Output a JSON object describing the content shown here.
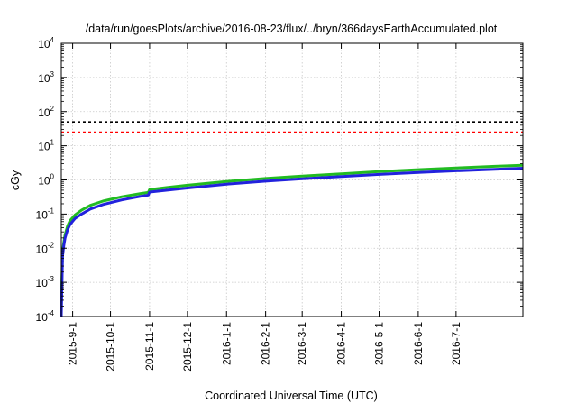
{
  "chart_data": {
    "type": "line",
    "title": "/data/run/goesPlots/archive/2016-08-23/flux/../bryn/366daysEarthAccumulated.plot",
    "xlabel": "Coordinated Universal Time (UTC)",
    "ylabel": "cGy",
    "y_scale": "log",
    "ylim": [
      0.0001,
      10000
    ],
    "xlim": [
      "2015-08-23",
      "2016-08-23"
    ],
    "y_ticks": [
      {
        "base": "10",
        "exp": "-4",
        "value": 0.0001
      },
      {
        "base": "10",
        "exp": "-3",
        "value": 0.001
      },
      {
        "base": "10",
        "exp": "-2",
        "value": 0.01
      },
      {
        "base": "10",
        "exp": "-1",
        "value": 0.1
      },
      {
        "base": "10",
        "exp": "0",
        "value": 1
      },
      {
        "base": "10",
        "exp": "1",
        "value": 10
      },
      {
        "base": "10",
        "exp": "2",
        "value": 100
      },
      {
        "base": "10",
        "exp": "3",
        "value": 1000
      },
      {
        "base": "10",
        "exp": "4",
        "value": 10000
      }
    ],
    "x_ticks": [
      {
        "label": "2015-9-1",
        "date": "2015-09-01"
      },
      {
        "label": "2015-10-1",
        "date": "2015-10-01"
      },
      {
        "label": "2015-11-1",
        "date": "2015-11-01"
      },
      {
        "label": "2015-12-1",
        "date": "2015-12-01"
      },
      {
        "label": "2016-1-1",
        "date": "2016-01-01"
      },
      {
        "label": "2016-2-1",
        "date": "2016-02-01"
      },
      {
        "label": "2016-3-1",
        "date": "2016-03-01"
      },
      {
        "label": "2016-4-1",
        "date": "2016-04-01"
      },
      {
        "label": "2016-5-1",
        "date": "2016-05-01"
      },
      {
        "label": "2016-6-1",
        "date": "2016-06-01"
      },
      {
        "label": "2016-7-1",
        "date": "2016-07-01"
      }
    ],
    "grid": true,
    "reference_lines": [
      {
        "value": 50,
        "color": "#000000",
        "style": "dashed"
      },
      {
        "value": 25,
        "color": "#ff0000",
        "style": "dashed"
      }
    ],
    "series": [
      {
        "color": "#22bb22",
        "x": [
          "2015-08-23",
          "2015-08-24",
          "2015-08-25",
          "2015-08-26",
          "2015-08-28",
          "2015-08-30",
          "2015-09-03",
          "2015-09-08",
          "2015-09-15",
          "2015-09-25",
          "2015-10-10",
          "2015-10-25",
          "2015-10-31",
          "2015-11-01",
          "2015-11-15",
          "2015-12-01",
          "2016-01-01",
          "2016-02-01",
          "2016-03-01",
          "2016-04-01",
          "2016-05-01",
          "2016-06-01",
          "2016-07-01",
          "2016-08-01",
          "2016-08-23"
        ],
        "y": [
          0.0002,
          0.008,
          0.015,
          0.025,
          0.045,
          0.065,
          0.095,
          0.13,
          0.18,
          0.24,
          0.32,
          0.4,
          0.43,
          0.52,
          0.6,
          0.7,
          0.9,
          1.1,
          1.3,
          1.5,
          1.75,
          2.0,
          2.25,
          2.5,
          2.7
        ]
      },
      {
        "color": "#2222dd",
        "x": [
          "2015-08-23",
          "2015-08-24",
          "2015-08-25",
          "2015-08-26",
          "2015-08-28",
          "2015-08-30",
          "2015-09-03",
          "2015-09-08",
          "2015-09-15",
          "2015-09-25",
          "2015-10-10",
          "2015-10-25",
          "2015-10-31",
          "2015-11-01",
          "2015-11-15",
          "2015-12-01",
          "2016-01-01",
          "2016-02-01",
          "2016-03-01",
          "2016-04-01",
          "2016-05-01",
          "2016-06-01",
          "2016-07-01",
          "2016-08-01",
          "2016-08-23"
        ],
        "y": [
          0.0001,
          0.006,
          0.012,
          0.02,
          0.035,
          0.05,
          0.075,
          0.1,
          0.14,
          0.19,
          0.26,
          0.33,
          0.36,
          0.44,
          0.5,
          0.58,
          0.75,
          0.92,
          1.08,
          1.25,
          1.45,
          1.65,
          1.85,
          2.05,
          2.2
        ]
      }
    ]
  }
}
